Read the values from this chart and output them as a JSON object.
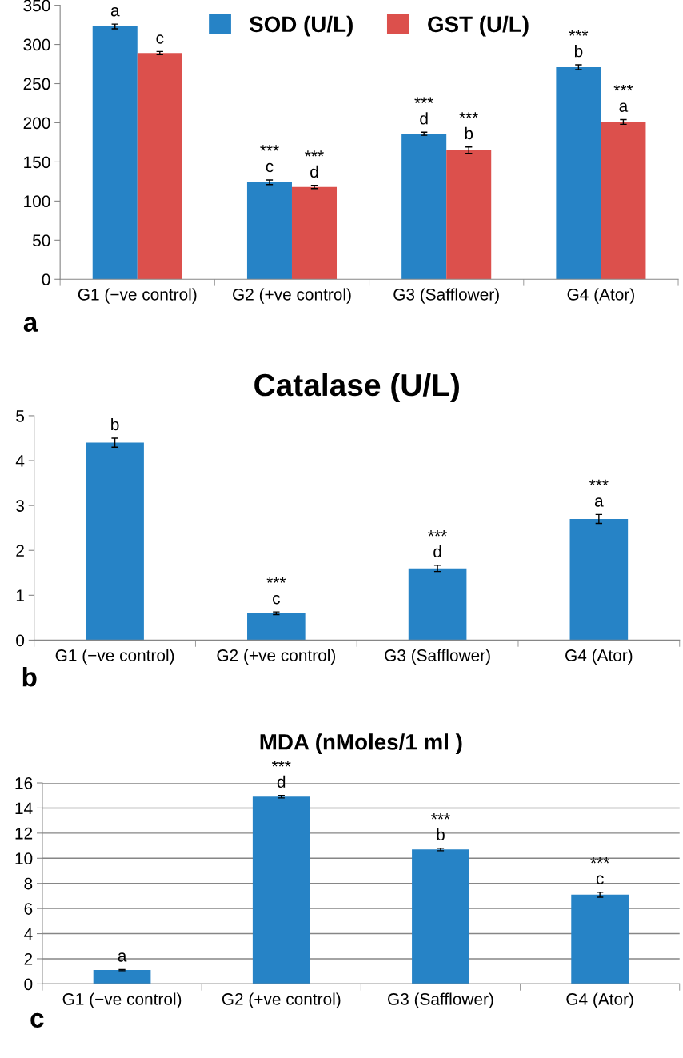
{
  "chart_data": [
    {
      "type": "bar",
      "categories": [
        "G1 (−ve control)",
        "G2 (+ve control)",
        "G3 (Safflower)",
        "G4 (Ator)"
      ],
      "series": [
        {
          "name": "SOD (U/L)",
          "color": "#2683c6",
          "values": [
            323,
            124,
            186,
            271
          ],
          "errors": [
            3,
            3,
            2,
            3
          ],
          "value_labels": [
            "a",
            "***\nc",
            "***\nd",
            "***\nb"
          ]
        },
        {
          "name": "GST (U/L)",
          "color": "#dc504c",
          "values": [
            289,
            118,
            165,
            201
          ],
          "errors": [
            2,
            2,
            4,
            3
          ],
          "value_labels": [
            "c",
            "***\nd",
            "***\nb",
            "***\na"
          ]
        }
      ],
      "ylim": [
        0,
        350
      ],
      "yticks": [
        0,
        50,
        100,
        150,
        200,
        250,
        300,
        350
      ],
      "legend": "top",
      "grid": false,
      "annotations": [
        "a"
      ]
    },
    {
      "type": "bar",
      "title": "Catalase (U/L)",
      "categories": [
        "G1 (−ve control)",
        "G2 (+ve control)",
        "G3 (Safflower)",
        "G4 (Ator)"
      ],
      "series": [
        {
          "color": "#2683c6",
          "values": [
            4.4,
            0.6,
            1.6,
            2.7
          ],
          "errors": [
            0.1,
            0.03,
            0.07,
            0.1
          ],
          "value_labels": [
            "b",
            "***\nc",
            "***\nd",
            "***\na"
          ]
        }
      ],
      "ylim": [
        0,
        5
      ],
      "yticks": [
        0,
        1,
        2,
        3,
        4,
        5
      ],
      "grid": false,
      "annotations": [
        "b"
      ]
    },
    {
      "type": "bar",
      "title": "MDA (nMoles/1 ml )",
      "categories": [
        "G1 (−ve control)",
        "G2 (+ve control)",
        "G3 (Safflower)",
        "G4 (Ator)"
      ],
      "series": [
        {
          "color": "#2683c6",
          "values": [
            1.1,
            14.9,
            10.7,
            7.1
          ],
          "errors": [
            0.05,
            0.1,
            0.1,
            0.2
          ],
          "value_labels": [
            "a",
            "***\nd",
            "***\nb",
            "***\nc"
          ]
        }
      ],
      "ylim": [
        0,
        16
      ],
      "yticks": [
        0,
        2,
        4,
        6,
        8,
        10,
        12,
        14,
        16
      ],
      "grid": "y",
      "annotations": [
        "c"
      ]
    }
  ]
}
